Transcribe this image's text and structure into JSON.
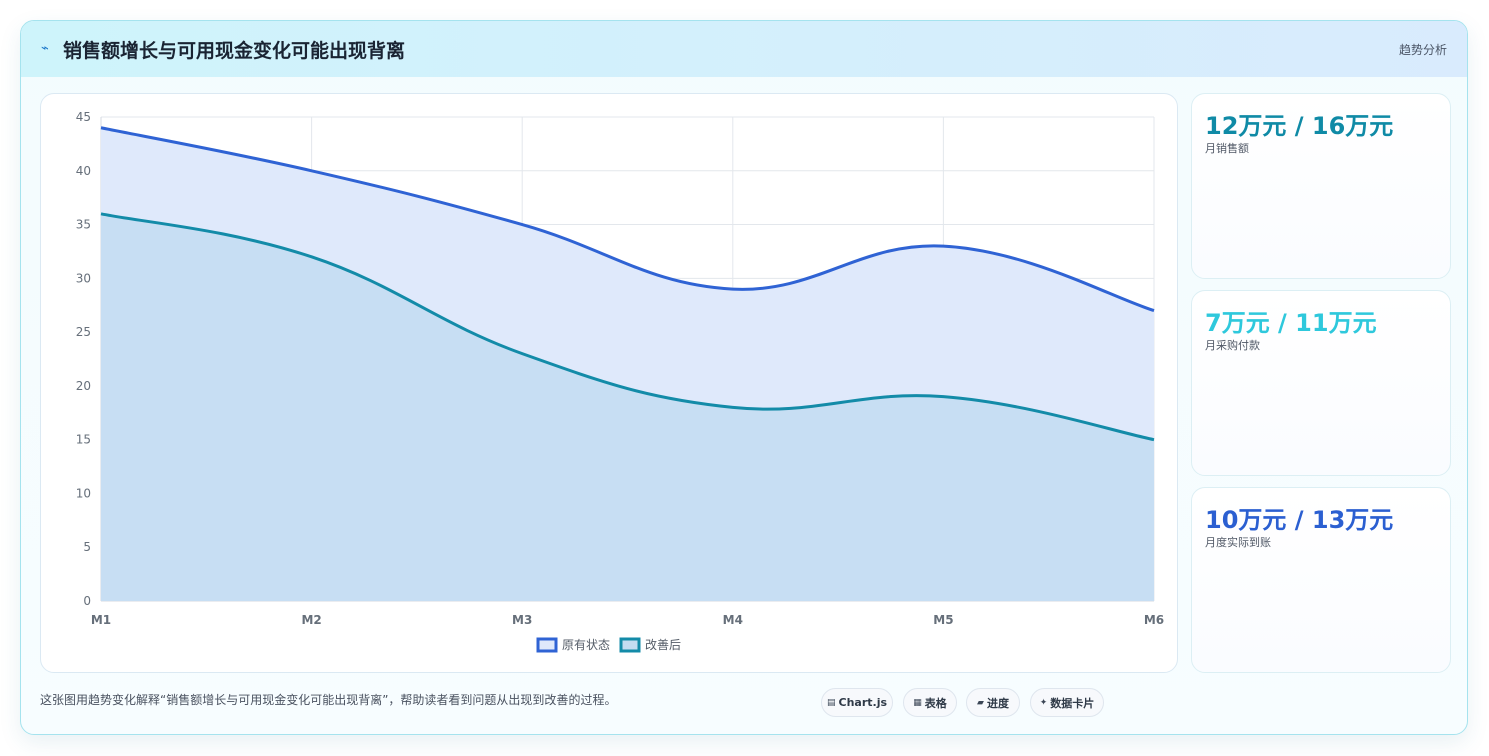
{
  "header": {
    "icon": "trend-icon",
    "title": "销售额增长与可用现金变化可能出现背离",
    "tag": "趋势分析"
  },
  "chart_data": {
    "type": "area",
    "categories": [
      "M1",
      "M2",
      "M3",
      "M4",
      "M5",
      "M6"
    ],
    "series": [
      {
        "name": "原有状态",
        "values": [
          44,
          40,
          35,
          29,
          33,
          27
        ],
        "color": "#2f63d4",
        "fill": "#dfe9fb"
      },
      {
        "name": "改善后",
        "values": [
          36,
          32,
          23,
          18,
          19,
          15
        ],
        "color": "#138ba8",
        "fill": "#c3dcf1"
      }
    ],
    "ylim": [
      0,
      45
    ],
    "yticks": [
      0,
      5,
      10,
      15,
      20,
      25,
      30,
      35,
      40,
      45
    ],
    "grid": true,
    "legend": "bottom"
  },
  "stats": [
    {
      "value": "12万元 / 16万元",
      "label": "月销售额",
      "color": "#0f8aa6"
    },
    {
      "value": "7万元 / 11万元",
      "label": "月采购付款",
      "color": "#2ec8dc"
    },
    {
      "value": "10万元 / 13万元",
      "label": "月度实际到账",
      "color": "#2b5fd1"
    }
  ],
  "footer": {
    "note": "这张图用趋势变化解释“销售额增长与可用现金变化可能出现背离”，帮助读者看到问题从出现到改善的过程。",
    "chips": [
      {
        "icon": "chart-icon",
        "label": "Chart.js"
      },
      {
        "icon": "table-icon",
        "label": "表格"
      },
      {
        "icon": "progress-icon",
        "label": "进度"
      },
      {
        "icon": "sparkle-icon",
        "label": "数据卡片"
      }
    ]
  }
}
